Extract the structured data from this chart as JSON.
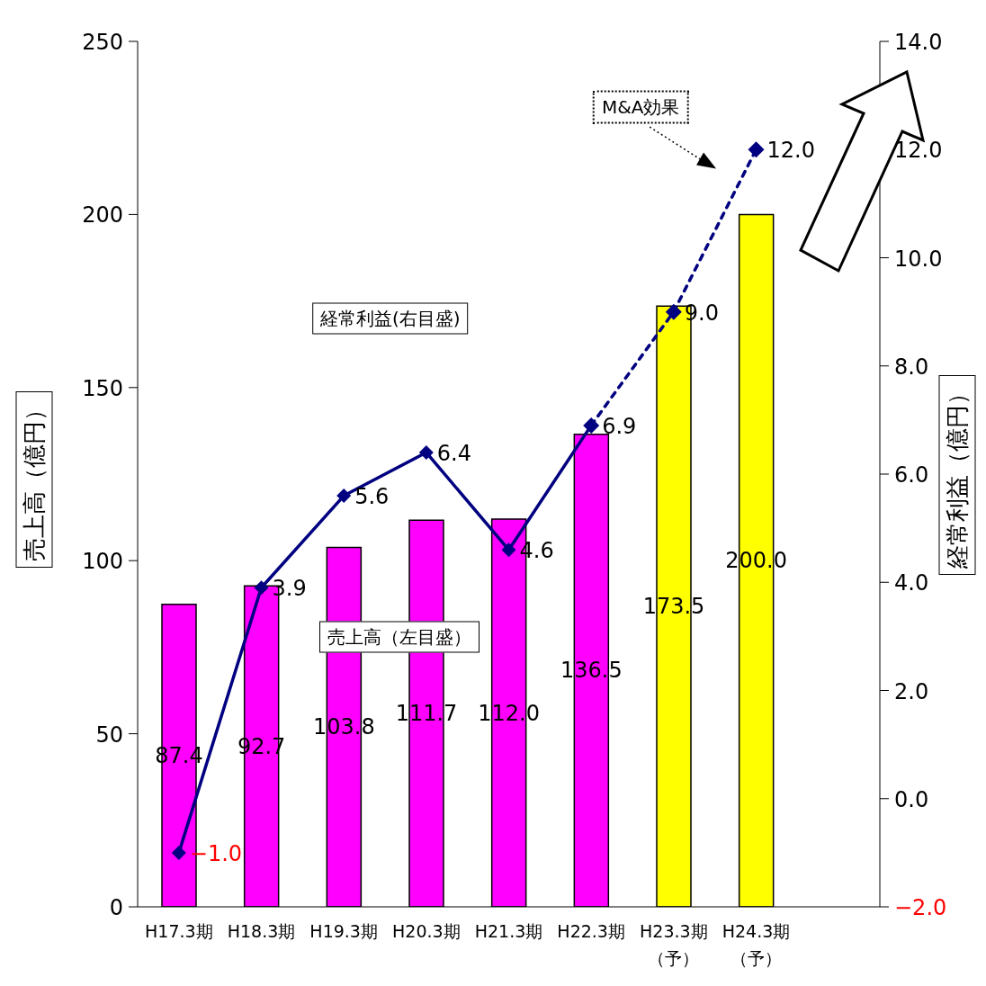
{
  "chart_data": {
    "type": "bar",
    "categories": [
      "H17.3期",
      "H18.3期",
      "H19.3期",
      "H20.3期",
      "H21.3期",
      "H22.3期",
      "H23.3期（予）",
      "H24.3期（予）"
    ],
    "series": [
      {
        "colors": [
          "#ff00ff",
          "#ff00ff",
          "#ff00ff",
          "#ff00ff",
          "#ff00ff",
          "#ff00ff",
          "#ffff00",
          "#ffff00"
        ],
        "values": [
          87.4,
          92.7,
          103.8,
          111.7,
          112.0,
          136.5,
          173.5,
          200.0
        ],
        "value_labels": [
          "87.4",
          "92.7",
          "103.8",
          "111.7",
          "112.0",
          "136.5",
          "173.5",
          "200.0"
        ]
      },
      {
        "type": "line",
        "axis": "y2",
        "color": "#000080",
        "line_style": "solid",
        "marker": "diamond",
        "values": [
          -1.0,
          3.9,
          5.6,
          6.4,
          4.6,
          6.9,
          null,
          null
        ],
        "value_labels": [
          "−1.0",
          "3.9",
          "5.6",
          "6.4",
          "4.6",
          "6.9",
          null,
          null
        ]
      },
      {
        "type": "line",
        "axis": "y2",
        "color": "#000080",
        "line_style": "dashed",
        "marker": "diamond",
        "values": [
          null,
          null,
          null,
          null,
          null,
          6.9,
          9.0,
          12.0
        ],
        "value_labels": [
          null,
          null,
          null,
          null,
          null,
          null,
          "9.0",
          "12.0"
        ]
      }
    ],
    "ylabel": "売上高（億円）",
    "y2label": "経常利益（億円）",
    "ylim": [
      0,
      250
    ],
    "yticks": [
      0,
      50,
      100,
      150,
      200,
      250
    ],
    "y2lim": [
      -2,
      14
    ],
    "y2ticks": [
      {
        "value": -2,
        "label": "−2.0"
      },
      {
        "value": 0,
        "label": "0.0"
      },
      {
        "value": 2,
        "label": "2.0"
      },
      {
        "value": 4,
        "label": "4.0"
      },
      {
        "value": 6,
        "label": "6.0"
      },
      {
        "value": 8,
        "label": "8.0"
      },
      {
        "value": 10,
        "label": "10.0"
      },
      {
        "value": 12,
        "label": "12.0"
      },
      {
        "value": 14,
        "label": "14.0"
      }
    ],
    "annotations": [
      "経常利益(右目盛)",
      "売上高（左目盛）",
      "M&A効果"
    ],
    "grid": false,
    "legend": false
  }
}
